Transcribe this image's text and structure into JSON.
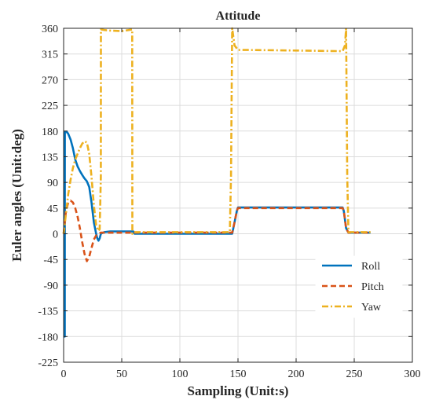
{
  "chart_data": {
    "type": "line",
    "title": "Attitude",
    "xlabel": "Sampling (Unit:s)",
    "ylabel": "Euler angles (Unit:deg)",
    "xlim": [
      0,
      300
    ],
    "ylim": [
      -225,
      360
    ],
    "xticks": [
      0,
      50,
      100,
      150,
      200,
      250,
      300
    ],
    "yticks": [
      360,
      315,
      270,
      225,
      180,
      135,
      90,
      45,
      0,
      -45,
      -90,
      -135,
      -180,
      -225
    ],
    "grid": true,
    "legend_position": "bottom-right",
    "series": [
      {
        "name": "Roll",
        "color": "#0072BD",
        "style": "solid",
        "x": [
          0,
          1,
          1.1,
          2,
          3,
          4,
          6,
          8,
          10,
          12,
          14,
          16,
          18,
          20,
          22,
          24,
          26,
          28,
          29,
          30,
          31,
          32,
          35,
          40,
          50,
          60,
          61,
          80,
          100,
          120,
          140,
          145,
          147,
          149,
          150,
          160,
          200,
          240,
          241,
          243,
          245,
          250,
          264
        ],
        "y": [
          -180,
          -180,
          178,
          178,
          178,
          175,
          165,
          150,
          130,
          118,
          110,
          103,
          97,
          92,
          82,
          55,
          20,
          0,
          -8,
          -12,
          -8,
          0,
          3,
          4,
          4,
          4,
          0,
          0,
          0,
          0,
          0,
          0,
          20,
          40,
          46,
          46,
          46,
          46,
          40,
          10,
          2,
          2,
          2
        ]
      },
      {
        "name": "Pitch",
        "color": "#D95319",
        "style": "dashed",
        "x": [
          0,
          1,
          2,
          4,
          6,
          8,
          10,
          12,
          14,
          16,
          18,
          20,
          22,
          24,
          26,
          28,
          30,
          31,
          32,
          35,
          40,
          50,
          60,
          100,
          140,
          145,
          147,
          149,
          150,
          200,
          240,
          241,
          243,
          245,
          250,
          264
        ],
        "y": [
          0,
          20,
          40,
          55,
          58,
          55,
          45,
          30,
          10,
          -15,
          -35,
          -48,
          -40,
          -25,
          -10,
          -3,
          0,
          1,
          2,
          2,
          2,
          2,
          2,
          2,
          2,
          2,
          20,
          40,
          45,
          45,
          45,
          40,
          10,
          2,
          2,
          2
        ]
      },
      {
        "name": "Yaw",
        "color": "#EDB120",
        "style": "dashdot",
        "x": [
          0,
          2,
          4,
          6,
          8,
          10,
          12,
          14,
          16,
          18,
          20,
          22,
          24,
          26,
          28,
          30,
          31,
          32,
          32.1,
          35,
          40,
          50,
          59,
          59.1,
          60,
          80,
          100,
          120,
          140,
          143,
          144,
          145,
          147,
          150,
          160,
          200,
          240,
          242,
          243,
          244,
          245,
          250,
          264
        ],
        "y": [
          0,
          35,
          70,
          95,
          115,
          130,
          140,
          150,
          158,
          162,
          160,
          140,
          100,
          50,
          15,
          5,
          8,
          100,
          358,
          357,
          356,
          355,
          358,
          0,
          3,
          3,
          3,
          3,
          3,
          3,
          100,
          360,
          330,
          322,
          322,
          321,
          320,
          330,
          360,
          100,
          3,
          3,
          3
        ]
      }
    ]
  }
}
